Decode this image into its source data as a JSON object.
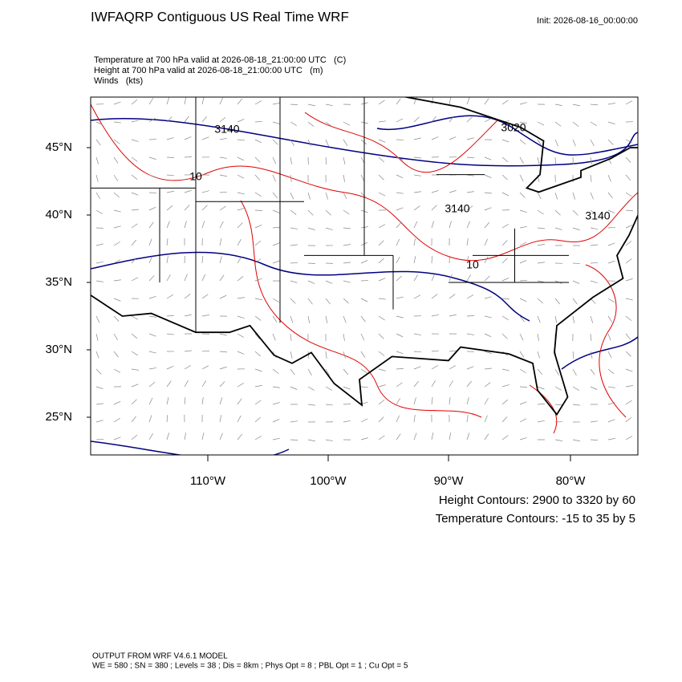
{
  "header": {
    "title": "IWFAQRP Contiguous US Real Time WRF",
    "init": "Init: 2026-08-16_00:00:00"
  },
  "fields": [
    "Temperature at 700 hPa valid at 2026-08-18_21:00:00 UTC   (C)",
    "Height at 700 hPa valid at 2026-08-18_21:00:00 UTC   (m)",
    "Winds   (kts)"
  ],
  "map": {
    "lat_labels": [
      "45°N",
      "40°N",
      "35°N",
      "30°N",
      "25°N"
    ],
    "lon_labels": [
      "110°W",
      "100°W",
      "90°W",
      "80°W"
    ],
    "contour_labels": [
      "3140",
      "3020",
      "3140",
      "3140",
      "10",
      "10"
    ]
  },
  "legend": [
    "Height Contours: 2900 to 3320 by 60",
    "Temperature Contours: -15 to 35 by 5"
  ],
  "footer": [
    "OUTPUT FROM WRF V4.6.1 MODEL",
    "WE = 580 ; SN = 380 ; Levels = 38 ; Dis = 8km ; Phys Opt = 8 ; PBL Opt = 1 ; Cu Opt = 5"
  ]
}
